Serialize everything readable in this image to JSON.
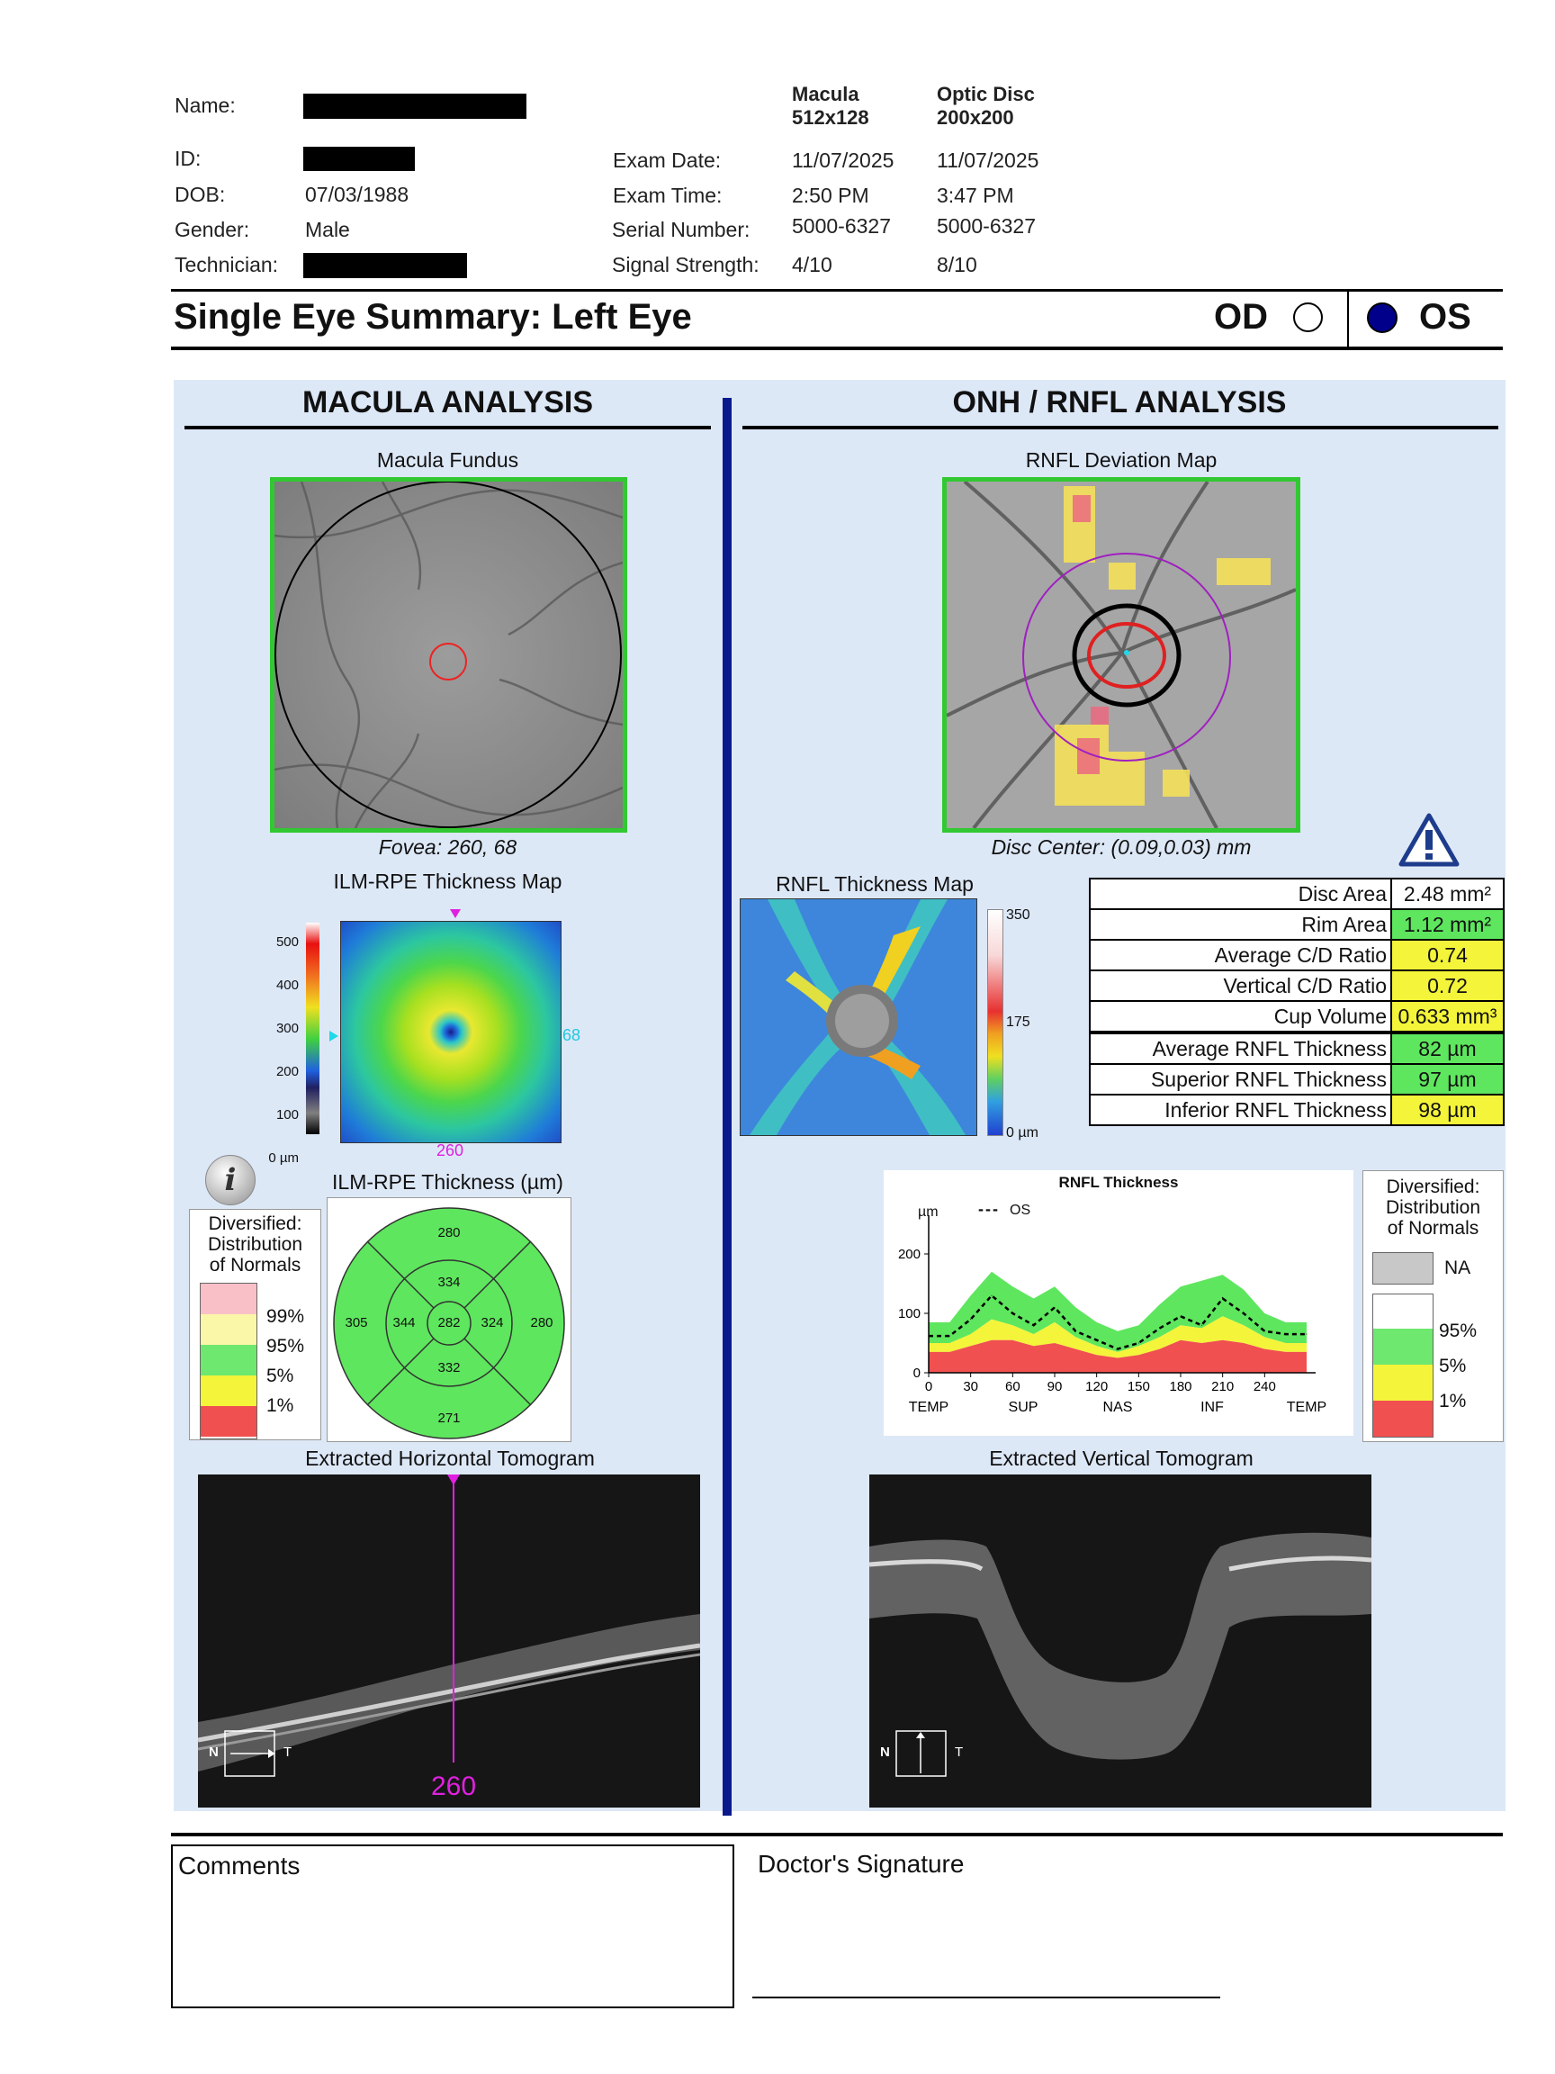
{
  "patient": {
    "name_label": "Name:",
    "id_label": "ID:",
    "dob_label": "DOB:",
    "dob": "07/03/1988",
    "gender_label": "Gender:",
    "gender": "Male",
    "technician_label": "Technician:"
  },
  "exam": {
    "macula_header_line1": "Macula",
    "macula_header_line2": "512x128",
    "disc_header_line1": "Optic Disc",
    "disc_header_line2": "200x200",
    "date_label": "Exam Date:",
    "time_label": "Exam Time:",
    "serial_label": "Serial Number:",
    "signal_label": "Signal Strength:",
    "macula_date": "11/07/2025",
    "macula_time": "2:50 PM",
    "macula_serial": "5000-6327",
    "macula_signal": "4/10",
    "disc_date": "11/07/2025",
    "disc_time": "3:47 PM",
    "disc_serial": "5000-6327",
    "disc_signal": "8/10"
  },
  "summary": {
    "title": "Single Eye Summary: Left Eye",
    "od_label": "OD",
    "os_label": "OS",
    "selected_eye": "OS"
  },
  "macula": {
    "section_title": "MACULA ANALYSIS",
    "fundus_title": "Macula Fundus",
    "fovea_caption": "Fovea: 260, 68",
    "thickness_map_title": "ILM-RPE Thickness Map",
    "scale_ticks": [
      "500",
      "400",
      "300",
      "200",
      "100",
      "0 µm"
    ],
    "map_x_marker": "260",
    "map_y_marker": "68",
    "grid_title": "ILM-RPE Thickness (µm)",
    "legend_title_1": "Diversified:",
    "legend_title_2": "Distribution",
    "legend_title_3": "of Normals",
    "legend_labels": [
      "99%",
      "95%",
      "5%",
      "1%"
    ],
    "legend_colors": [
      "#f9c0c8",
      "#fbf7a8",
      "#6ee86e",
      "#f4f43a",
      "#f05050"
    ],
    "grid_values": {
      "outer_superior": "280",
      "inner_superior": "334",
      "outer_temporal": "305",
      "inner_temporal": "344",
      "center": "282",
      "inner_nasal": "324",
      "outer_nasal": "280",
      "inner_inferior": "332",
      "outer_inferior": "271"
    },
    "tomogram_title": "Extracted Horizontal Tomogram",
    "tomogram_marker": "260",
    "orient_n": "N",
    "orient_t": "T"
  },
  "onh": {
    "section_title": "ONH / RNFL ANALYSIS",
    "deviation_title": "RNFL Deviation Map",
    "disc_center_caption": "Disc Center: (0.09,0.03) mm",
    "thickness_map_title": "RNFL Thickness Map",
    "scale_ticks": [
      "350",
      "175",
      "0 µm"
    ],
    "stats": [
      {
        "label": "Disc Area",
        "value": "2.48 mm²",
        "color": "#ffffff"
      },
      {
        "label": "Rim Area",
        "value": "1.12 mm²",
        "color": "#5ee65e"
      },
      {
        "label": "Average C/D Ratio",
        "value": "0.74",
        "color": "#f4f43a"
      },
      {
        "label": "Vertical C/D Ratio",
        "value": "0.72",
        "color": "#f4f43a"
      },
      {
        "label": "Cup Volume",
        "value": "0.633 mm³",
        "color": "#f4f43a"
      },
      {
        "label": "Average RNFL Thickness",
        "value": "82 µm",
        "color": "#5ee65e"
      },
      {
        "label": "Superior RNFL Thickness",
        "value": "97 µm",
        "color": "#5ee65e"
      },
      {
        "label": "Inferior RNFL Thickness",
        "value": "98 µm",
        "color": "#f4f43a"
      }
    ],
    "legend_title_1": "Diversified:",
    "legend_title_2": "Distribution",
    "legend_title_3": "of Normals",
    "legend_na": "NA",
    "legend_labels": [
      "95%",
      "5%",
      "1%"
    ],
    "legend_colors": [
      "#c8c8c8",
      "#ffffff",
      "#6ee86e",
      "#f4f43a",
      "#f05050"
    ],
    "tomogram_title": "Extracted Vertical Tomogram",
    "orient_n": "N",
    "orient_t": "T"
  },
  "chart_data": {
    "type": "line",
    "title": "RNFL Thickness",
    "ylabel": "µm",
    "legend": "OS",
    "ylim": [
      0,
      250
    ],
    "xlim": [
      0,
      270
    ],
    "x_ticks": [
      "0",
      "30",
      "60",
      "90",
      "120",
      "150",
      "180",
      "210",
      "240"
    ],
    "y_ticks": [
      "0",
      "100",
      "200"
    ],
    "sector_labels": [
      "TEMP",
      "SUP",
      "NAS",
      "INF",
      "TEMP"
    ],
    "x": [
      0,
      15,
      30,
      45,
      60,
      75,
      90,
      105,
      120,
      135,
      150,
      165,
      180,
      195,
      210,
      225,
      240,
      255,
      270
    ],
    "series": [
      {
        "name": "OS",
        "values": [
          62,
          62,
          90,
          130,
          100,
          80,
          110,
          70,
          55,
          40,
          50,
          75,
          95,
          80,
          125,
          100,
          70,
          65,
          65
        ]
      }
    ],
    "bands": {
      "p1": [
        35,
        35,
        45,
        55,
        55,
        45,
        50,
        40,
        30,
        25,
        30,
        40,
        55,
        50,
        55,
        50,
        40,
        35,
        35
      ],
      "p5": [
        50,
        50,
        65,
        90,
        80,
        65,
        85,
        60,
        45,
        35,
        45,
        60,
        80,
        75,
        95,
        80,
        60,
        50,
        50
      ],
      "p95": [
        85,
        85,
        130,
        170,
        145,
        125,
        145,
        110,
        85,
        70,
        80,
        115,
        145,
        155,
        165,
        140,
        100,
        85,
        85
      ]
    }
  },
  "footer": {
    "comments_label": "Comments",
    "signature_label": "Doctor's Signature"
  }
}
